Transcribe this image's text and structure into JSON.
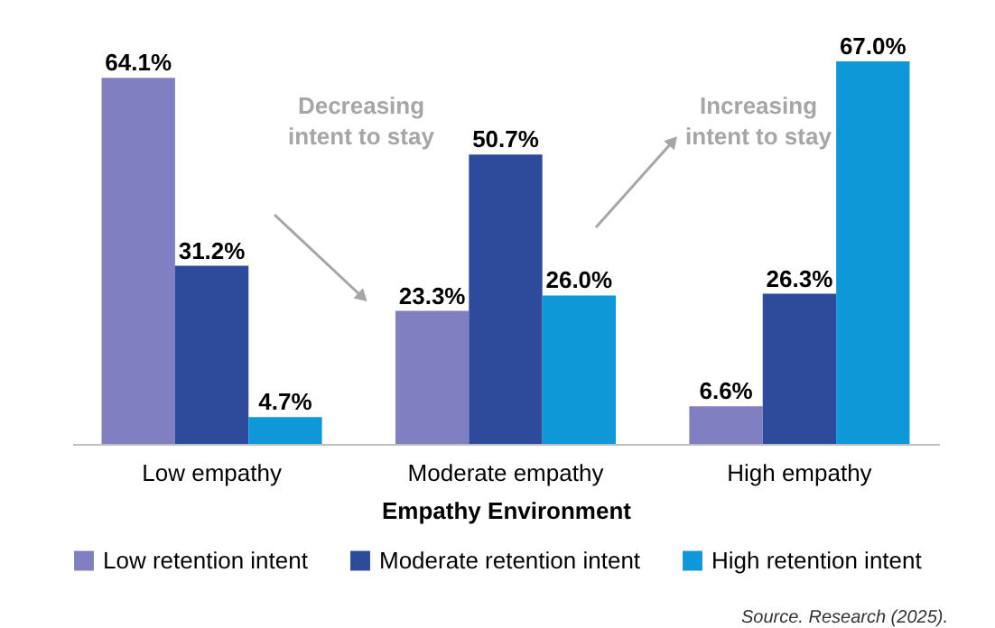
{
  "chart_data": {
    "type": "bar",
    "xlabel": "Empathy Environment",
    "categories": [
      "Low empathy",
      "Moderate empathy",
      "High empathy"
    ],
    "series": [
      {
        "name": "Low retention intent",
        "color": "#7f7fc2",
        "values": [
          64.1,
          23.3,
          6.6
        ],
        "value_labels": [
          "64.1%",
          "23.3%",
          "6.6%"
        ]
      },
      {
        "name": "Moderate retention intent",
        "color": "#2e4b9b",
        "values": [
          31.2,
          50.7,
          26.3
        ],
        "value_labels": [
          "31.2%",
          "50.7%",
          "26.3%"
        ]
      },
      {
        "name": "High retention intent",
        "color": "#0f98d8",
        "values": [
          4.7,
          26.0,
          67.0
        ],
        "value_labels": [
          "4.7%",
          "26.0%",
          "67.0%"
        ]
      }
    ],
    "legend": "bottom",
    "grid": false,
    "annotations": [
      "Decreasing intent to stay",
      "Increasing intent to stay",
      "Source. Research (2025)."
    ]
  }
}
